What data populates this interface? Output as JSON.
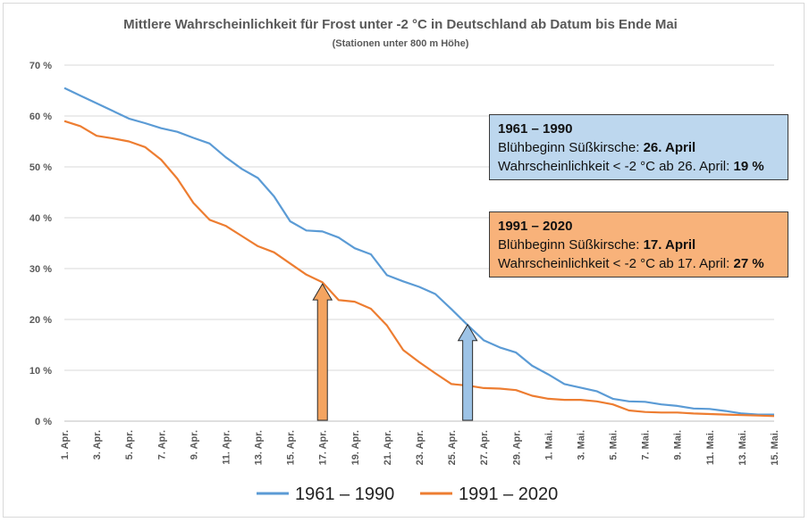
{
  "colors": {
    "series_1961": "#5b9bd5",
    "series_1991": "#ed7d31",
    "arrow_1991": "#f4a460",
    "arrow_1961": "#9dc3e6",
    "box_1961": "#bdd7ee",
    "box_1991": "#f8b27a"
  },
  "chart_data": {
    "type": "line",
    "title": "Mittlere Wahrscheinlichkeit  für Frost unter -2 °C in Deutschland ab Datum bis Ende Mai",
    "subtitle": "(Stationen unter 800 m Höhe)",
    "ylim": [
      0,
      70
    ],
    "y_ticks": [
      0,
      10,
      20,
      30,
      40,
      50,
      60,
      70
    ],
    "y_tick_labels": [
      "0 %",
      "10 %",
      "20 %",
      "30 %",
      "40 %",
      "50 %",
      "60 %",
      "70 %"
    ],
    "grid": "horizontal",
    "legend_position": "bottom",
    "x": [
      "1. Apr.",
      "2. Apr.",
      "3. Apr.",
      "4. Apr.",
      "5. Apr.",
      "6. Apr.",
      "7. Apr.",
      "8. Apr.",
      "9. Apr.",
      "10. Apr.",
      "11. Apr.",
      "12. Apr.",
      "13. Apr.",
      "14. Apr.",
      "15. Apr.",
      "16. Apr.",
      "17. Apr.",
      "18. Apr.",
      "19. Apr.",
      "20. Apr.",
      "21. Apr.",
      "22. Apr.",
      "23. Apr.",
      "24. Apr.",
      "25. Apr.",
      "26. Apr.",
      "27. Apr.",
      "28. Apr.",
      "29. Apr.",
      "30. Apr.",
      "1. Mai.",
      "2. Mai.",
      "3. Mai.",
      "4. Mai.",
      "5. Mai.",
      "6. Mai.",
      "7. Mai.",
      "8. Mai.",
      "9. Mai.",
      "10. Mai.",
      "11. Mai.",
      "12. Mai.",
      "13. Mai.",
      "14. Mai.",
      "15. Mai."
    ],
    "x_tick_labels": [
      "1. Apr.",
      "3. Apr.",
      "5. Apr.",
      "7. Apr.",
      "9. Apr.",
      "11. Apr.",
      "13. Apr.",
      "15. Apr.",
      "17. Apr.",
      "19. Apr.",
      "21. Apr.",
      "23. Apr.",
      "25. Apr.",
      "27. Apr.",
      "29. Apr.",
      "1. Mai.",
      "3. Mai.",
      "5. Mai.",
      "7. Mai.",
      "9. Mai.",
      "11. Mai.",
      "13. Mai.",
      "15. Mai."
    ],
    "series": [
      {
        "name": "1961 – 1990",
        "values": [
          65.5,
          64.0,
          62.5,
          61.0,
          59.5,
          58.6,
          57.6,
          56.9,
          55.7,
          54.6,
          51.9,
          49.6,
          47.8,
          44.2,
          39.3,
          37.5,
          37.3,
          36.1,
          34.0,
          32.8,
          28.7,
          27.5,
          26.4,
          25.0,
          22.0,
          18.9,
          15.9,
          14.5,
          13.5,
          10.9,
          9.2,
          7.3,
          6.6,
          5.9,
          4.4,
          3.9,
          3.8,
          3.3,
          3.0,
          2.5,
          2.4,
          2.0,
          1.5,
          1.3,
          1.3
        ]
      },
      {
        "name": "1991 – 2020",
        "values": [
          59.0,
          58.0,
          56.1,
          55.6,
          55.0,
          53.9,
          51.4,
          47.7,
          42.9,
          39.6,
          38.4,
          36.4,
          34.4,
          33.2,
          31.0,
          28.8,
          27.3,
          23.8,
          23.5,
          22.1,
          18.8,
          14.0,
          11.6,
          9.4,
          7.3,
          7.0,
          6.5,
          6.4,
          6.1,
          5.0,
          4.4,
          4.2,
          4.2,
          3.9,
          3.3,
          2.1,
          1.8,
          1.7,
          1.7,
          1.5,
          1.4,
          1.3,
          1.2,
          1.1,
          1.0
        ]
      }
    ],
    "annotations": [
      {
        "series": "1991 – 2020",
        "arrow_at": "17. Apr.",
        "arrow_to": 27
      },
      {
        "series": "1961 – 1990",
        "arrow_at": "26. Apr.",
        "arrow_to": 19
      }
    ]
  },
  "info_1961": {
    "heading": "1961 – 1990",
    "line1_label": "Blühbeginn Süßkirsche: ",
    "line1_value": "26. April",
    "line2_label": "Wahrscheinlichkeit < -2 °C ab 26. April: ",
    "line2_value": "19 %"
  },
  "info_1991": {
    "heading": "1991 – 2020",
    "line1_label": "Blühbeginn Süßkirsche: ",
    "line1_value": "17. April",
    "line2_label": "Wahrscheinlichkeit < -2 °C ab 17. April: ",
    "line2_value": "27 %"
  },
  "legend": [
    {
      "label": "1961 – 1990"
    },
    {
      "label": "1991 – 2020"
    }
  ]
}
